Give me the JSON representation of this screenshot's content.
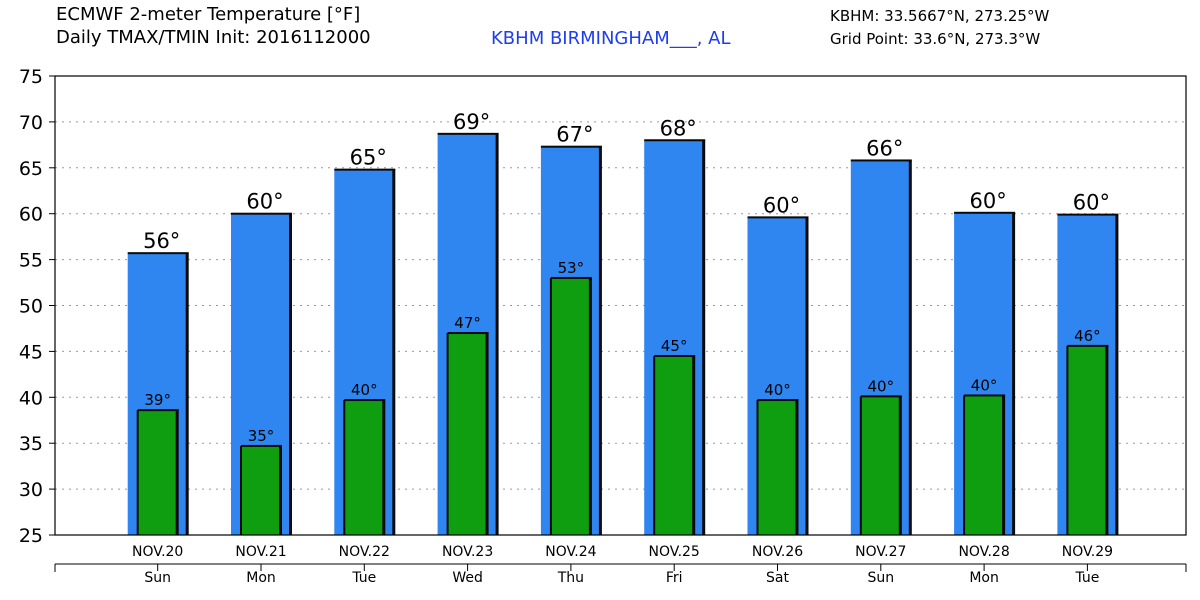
{
  "header": {
    "title_line1": "ECMWF 2-meter Temperature [°F]",
    "title_line2": "Daily TMAX/TMIN Init: 2016112000",
    "station": "KBHM BIRMINGHAM___, AL",
    "coord_line1": "KBHM: 33.5667°N, 273.25°W",
    "coord_line2": "Grid Point: 33.6°N, 273.3°W"
  },
  "colors": {
    "tmax_bar": "#2f86f0",
    "tmin_bar": "#0f9e10",
    "grid": "#999999",
    "station_text": "#1f3df0"
  },
  "chart_data": {
    "type": "bar",
    "title": "ECMWF 2-meter Temperature [°F]",
    "ylim": [
      25,
      75
    ],
    "yticks": [
      25,
      30,
      35,
      40,
      45,
      50,
      55,
      60,
      65,
      70,
      75
    ],
    "grid": "horizontal dotted",
    "categories": [
      "NOV.20",
      "NOV.21",
      "NOV.22",
      "NOV.23",
      "NOV.24",
      "NOV.25",
      "NOV.26",
      "NOV.27",
      "NOV.28",
      "NOV.29"
    ],
    "days": [
      "Sun",
      "Mon",
      "Tue",
      "Wed",
      "Thu",
      "Fri",
      "Sat",
      "Sun",
      "Mon",
      "Tue"
    ],
    "series": [
      {
        "name": "TMAX",
        "values": [
          55.7,
          60.0,
          64.8,
          68.7,
          67.3,
          68.0,
          59.6,
          65.8,
          60.1,
          59.9
        ],
        "labels": [
          "56°",
          "60°",
          "65°",
          "69°",
          "67°",
          "68°",
          "60°",
          "66°",
          "60°",
          "60°"
        ]
      },
      {
        "name": "TMIN",
        "values": [
          38.6,
          34.7,
          39.7,
          47.0,
          53.0,
          44.5,
          39.7,
          40.1,
          40.2,
          45.6
        ],
        "labels": [
          "39°",
          "35°",
          "40°",
          "47°",
          "53°",
          "45°",
          "40°",
          "40°",
          "40°",
          "46°"
        ]
      }
    ]
  }
}
